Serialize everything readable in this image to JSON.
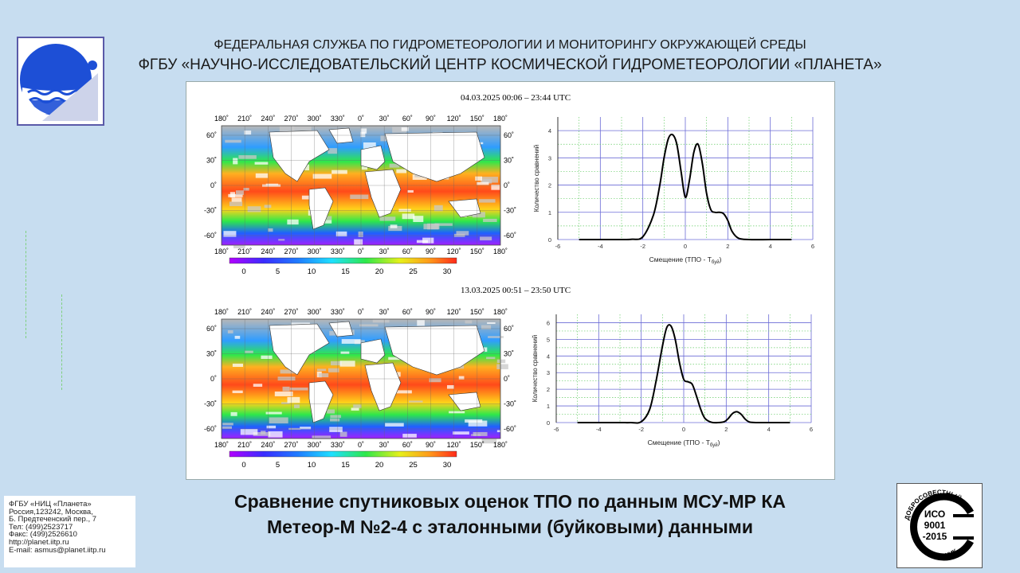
{
  "header": {
    "line1": "ФЕДЕРАЛЬНАЯ СЛУЖБА ПО ГИДРОМЕТЕОРОЛОГИИ И МОНИТОРИНГУ ОКРУЖАЮЩЕЙ СРЕДЫ",
    "line2": "ФГБУ «НАУЧНО-ИССЛЕДОВАТЕЛЬСКИЙ ЦЕНТР КОСМИЧЕСКОЙ ГИДРОМЕТЕОРОЛОГИИ «ПЛАНЕТА»"
  },
  "panels": [
    {
      "date": "04.03.2025  00:06 – 23:44 UTC"
    },
    {
      "date": "13.03.2025  00:51 – 23:50 UTC"
    }
  ],
  "map": {
    "lon_labels": [
      "180˚",
      "210˚",
      "240˚",
      "270˚",
      "300˚",
      "330˚",
      "0˚",
      "30˚",
      "60˚",
      "90˚",
      "120˚",
      "150˚",
      "180˚"
    ],
    "lat_labels": [
      "60˚",
      "30˚",
      "0˚",
      "-30˚",
      "-60˚"
    ],
    "colorbar_ticks": [
      "0",
      "5",
      "10",
      "15",
      "20",
      "25",
      "30"
    ]
  },
  "chart_data": [
    {
      "type": "line",
      "xlabel": "Смещение (ТПО - T",
      "xlabel_sub": "буй",
      "xlabel_end": ")",
      "ylabel": "Количество сравнений",
      "xlim": [
        -6,
        6
      ],
      "ylim": [
        0,
        4.5
      ],
      "xticks": [
        -6,
        -4,
        -2,
        0,
        2,
        4,
        6
      ],
      "yticks": [
        0,
        1,
        2,
        3,
        4
      ],
      "x": [
        -5,
        -4,
        -3,
        -2.5,
        -2,
        -1.5,
        -1.2,
        -1,
        -0.8,
        -0.6,
        -0.4,
        -0.2,
        0,
        0.2,
        0.4,
        0.6,
        0.8,
        1,
        1.2,
        1.4,
        1.6,
        1.8,
        2,
        2.2,
        2.5,
        3,
        4,
        5
      ],
      "y": [
        0,
        0,
        0,
        0.01,
        0.1,
        0.9,
        2.0,
        3.0,
        3.7,
        3.85,
        3.5,
        2.5,
        1.55,
        2.2,
        3.2,
        3.5,
        2.8,
        1.7,
        1.1,
        1.0,
        1.0,
        0.95,
        0.7,
        0.3,
        0.05,
        0,
        0,
        0
      ]
    },
    {
      "type": "line",
      "xlabel": "Смещение (ТПО - T",
      "xlabel_sub": "буй",
      "xlabel_end": ")",
      "ylabel": "Количество сравнений",
      "xlim": [
        -6,
        6
      ],
      "ylim": [
        0,
        6.5
      ],
      "xticks": [
        -6,
        -4,
        -2,
        0,
        2,
        4,
        6
      ],
      "yticks": [
        0,
        1,
        2,
        3,
        4,
        5,
        6
      ],
      "x": [
        -5,
        -4,
        -3,
        -2.5,
        -2,
        -1.6,
        -1.3,
        -1,
        -0.8,
        -0.6,
        -0.4,
        -0.2,
        0,
        0.2,
        0.4,
        0.6,
        0.8,
        1,
        1.3,
        1.6,
        1.9,
        2.1,
        2.3,
        2.5,
        2.7,
        2.9,
        3.1,
        3.5,
        4,
        5
      ],
      "y": [
        0,
        0,
        0,
        0,
        0.05,
        0.8,
        2.5,
        4.6,
        5.7,
        5.8,
        5.0,
        3.6,
        2.6,
        2.45,
        2.3,
        1.6,
        0.8,
        0.25,
        0.02,
        0,
        0.05,
        0.25,
        0.55,
        0.65,
        0.5,
        0.2,
        0.03,
        0,
        0,
        0
      ]
    }
  ],
  "caption": {
    "line1": "Сравнение спутниковых оценок ТПО по данным МСУ-МР КА",
    "line2": "Метеор-М №2-4 с эталонными (буйковыми) данными"
  },
  "contact": [
    "ФГБУ «НИЦ «Планета»",
    "Россия,123242, Москва,",
    "Б. Предтеченский пер., 7",
    "Тел:   (499)2523717",
    "Факс: (499)2526610",
    "http://planet.iitp.ru",
    "E-mail: asmus@planet.iitp.ru"
  ],
  "iso": {
    "top_text": "ДОБРОСОВЕСТНЫЙ",
    "line1": "ИСО",
    "line2": "9001",
    "line3": "-2015",
    "bottom_text": "ПОСТАВЩИК"
  }
}
